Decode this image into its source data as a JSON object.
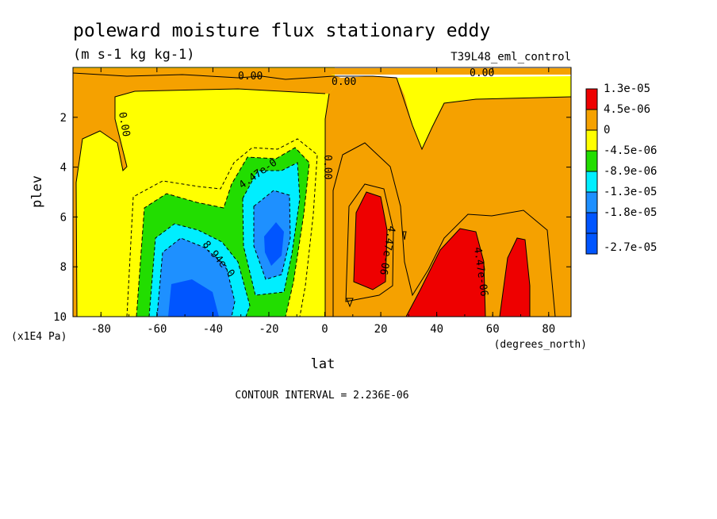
{
  "chart_data": {
    "type": "heatmap",
    "subtype": "filled-contour",
    "title": "poleward moisture flux stationary eddy",
    "units": "(m s-1 kg kg-1)",
    "experiment": "T39L48_eml_control",
    "xlabel": "lat",
    "x_units": "(degrees_north)",
    "ylabel": "plev",
    "y_units": "(x1E4 Pa)",
    "xlim": [
      -90,
      88
    ],
    "ylim": [
      10,
      0
    ],
    "x_ticks": [
      -80,
      -60,
      -40,
      -20,
      0,
      20,
      40,
      60,
      80
    ],
    "y_ticks": [
      2,
      4,
      6,
      8,
      10
    ],
    "x_tick_labels": [
      "-80",
      "-60",
      "-40",
      "-20",
      "0",
      "20",
      "40",
      "60",
      "80"
    ],
    "y_tick_labels": [
      "2",
      "4",
      "6",
      "8",
      "10"
    ],
    "legend": {
      "placement": "right",
      "levels": [
        "1.3e-05",
        "4.5e-06",
        "0",
        "-4.5e-06",
        "-8.9e-06",
        "-1.3e-05",
        "-1.8e-05",
        "-2.7e-05"
      ],
      "colors": [
        "#ee0000",
        "#f5a100",
        "#ffff00",
        "#22dd00",
        "#00eeff",
        "#1e90ff",
        "#0055ff",
        "#0055ff"
      ]
    },
    "contour_labels": [
      {
        "text": "0.00",
        "lat": 40,
        "plev": 0.2
      },
      {
        "text": "0.00",
        "lat": -80,
        "plev": 2.8
      },
      {
        "text": "0.00",
        "lat": 2,
        "plev": 4.3
      },
      {
        "text": "0.00",
        "lat": 8,
        "plev": 0.5
      },
      {
        "text": "0.00",
        "lat": 57,
        "plev": 0.1
      },
      {
        "text": "4.47e-0",
        "lat": -20,
        "plev": 4.3
      },
      {
        "text": "8.94e-0",
        "lat": -35,
        "plev": 7.8
      },
      {
        "text": "4.47e-06",
        "lat": 20,
        "plev": 7.5
      },
      {
        "text": "4.47e-06",
        "lat": 57,
        "plev": 8.5
      }
    ],
    "regions": [
      {
        "level": "0",
        "lat_range": [
          -90,
          0
        ],
        "plev_range": [
          0.8,
          10
        ],
        "note": "broad yellow field, weak negative flux"
      },
      {
        "level": "-8.9e-06",
        "lat_range": [
          -65,
          -8
        ],
        "plev_range": [
          3.6,
          10
        ],
        "note": "green core, southern subtropics"
      },
      {
        "level": "-1.8e-05",
        "lat_range": [
          -60,
          -35
        ],
        "plev_range": [
          6.8,
          10
        ],
        "note": "blue core near surface"
      },
      {
        "level": "-1.8e-05",
        "lat_range": [
          -20,
          -12
        ],
        "plev_range": [
          5.8,
          8.2
        ],
        "note": "blue core mid-troposphere"
      },
      {
        "level": "4.5e-06",
        "lat_range": [
          0,
          88
        ],
        "plev_range": [
          0.5,
          10
        ],
        "note": "orange field, northern hemisphere"
      },
      {
        "level": "1.3e-05",
        "lat_range": [
          11,
          25
        ],
        "plev_range": [
          5,
          9.8
        ],
        "note": "red core tropics"
      },
      {
        "level": "1.3e-05",
        "lat_range": [
          33,
          58
        ],
        "plev_range": [
          6.4,
          10
        ],
        "note": "red core midlatitude"
      },
      {
        "level": "1.3e-05",
        "lat_range": [
          62,
          75
        ],
        "plev_range": [
          6.8,
          10
        ],
        "note": "red core high latitude"
      }
    ]
  },
  "footer": {
    "contour_interval": "CONTOUR INTERVAL = 2.236E-06"
  }
}
